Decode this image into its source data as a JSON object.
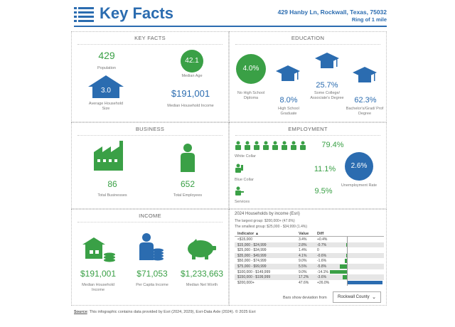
{
  "header": {
    "title": "Key Facts",
    "address": "429 Hanby Ln, Rockwall, Texas, 75032",
    "ring": "Ring of 1 mile"
  },
  "key_facts": {
    "title": "KEY FACTS",
    "population": "429",
    "population_label": "Population",
    "median_age": "42.1",
    "median_age_label": "Median Age",
    "household_size": "3.0",
    "household_size_label": "Average Household Size",
    "median_income": "$191,001",
    "median_income_label": "Median Household Income"
  },
  "education": {
    "title": "EDUCATION",
    "no_hs": "4.0%",
    "no_hs_label": "No High School Diploma",
    "hs": "8.0%",
    "hs_label": "High School Graduate",
    "some_college": "25.7%",
    "some_college_label": "Some College/ Associate's Degree",
    "bachelor": "62.3%",
    "bachelor_label": "Bachelor's/Grad/ Prof Degree"
  },
  "business": {
    "title": "BUSINESS",
    "total_businesses": "86",
    "total_businesses_label": "Total Businesses",
    "total_employees": "652",
    "total_employees_label": "Total Employees"
  },
  "employment": {
    "title": "EMPLOYMENT",
    "white_collar": "79.4%",
    "white_collar_label": "White Collar",
    "blue_collar": "11.1%",
    "blue_collar_label": "Blue Collar",
    "services": "9.5%",
    "services_label": "Services",
    "unemployment": "2.6%",
    "unemployment_label": "Unemployment Rate"
  },
  "income": {
    "title": "INCOME",
    "median_household": "$191,001",
    "median_household_label": "Median Household Income",
    "per_capita": "$71,053",
    "per_capita_label": "Per Capita Income",
    "net_worth": "$1,233,663",
    "net_worth_label": "Median Net Worth"
  },
  "households_table": {
    "title": "2024 Households by income (Esri)",
    "largest": "The largest group: $200,000+ (47.6%)",
    "smallest": "The smallest group: $25,000 - $34,999 (1.4%)",
    "headers": {
      "indicator": "Indicator ▲",
      "value": "Value",
      "diff": "Diff"
    },
    "rows": [
      {
        "indicator": "<$15,000",
        "value": "3.4%",
        "diff": "+0.4%",
        "diff_num": 0.4
      },
      {
        "indicator": "$15,000 - $24,999",
        "value": "2.8%",
        "diff": "-0.7%",
        "diff_num": -0.7
      },
      {
        "indicator": "$25,000 - $34,999",
        "value": "1.4%",
        "diff": "0",
        "diff_num": 0
      },
      {
        "indicator": "$35,000 - $49,999",
        "value": "4.1%",
        "diff": "-0.6%",
        "diff_num": -0.6
      },
      {
        "indicator": "$50,000 - $74,999",
        "value": "9.0%",
        "diff": "-1.6%",
        "diff_num": -1.6
      },
      {
        "indicator": "$75,000 - $99,999",
        "value": "5.5%",
        "diff": "-5.8%",
        "diff_num": -5.8
      },
      {
        "indicator": "$100,000 - $149,999",
        "value": "9.0%",
        "diff": "-14.1%",
        "diff_num": -14.1
      },
      {
        "indicator": "$150,000 - $199,999",
        "value": "17.2%",
        "diff": "-3.6%",
        "diff_num": -3.6
      },
      {
        "indicator": "$200,000+",
        "value": "47.6%",
        "diff": "+26.0%",
        "diff_num": 26.0
      }
    ],
    "bars_label": "Bars show deviation from",
    "compare_select": "Rockwall County"
  },
  "source": {
    "label": "Source",
    "text": ": This infographic contains data provided by Esri (2024, 2029), Esri-Data Axle (2024). © 2025 Esri"
  },
  "colors": {
    "green": "#3aa046",
    "blue": "#2b6cb0",
    "positive_bar": "#2b6cb0",
    "negative_bar": "#3aa046"
  }
}
